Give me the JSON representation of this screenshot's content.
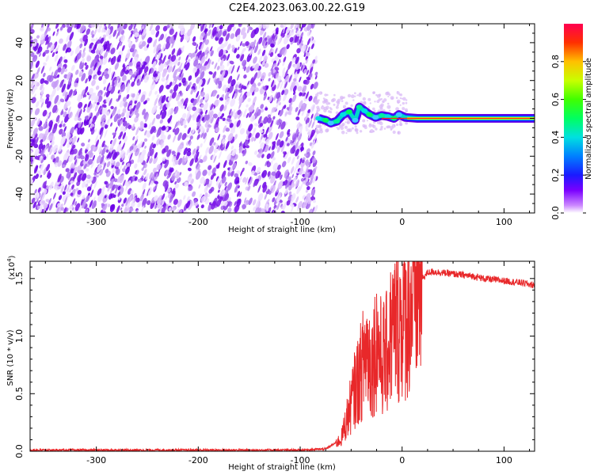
{
  "figure_title": "C2E4.2023.063.00.22.G19",
  "chart_data": [
    {
      "type": "heatmap",
      "xlabel": "Height of straight line (km)",
      "ylabel": "Frequency (Hz)",
      "xlim": [
        -365,
        130
      ],
      "ylim": [
        -50,
        50
      ],
      "xticks": [
        -300,
        -200,
        -100,
        0,
        100
      ],
      "yticks": [
        -40,
        -20,
        0,
        20,
        40
      ],
      "noise_region": [
        -365,
        -84
      ],
      "signal_trace": [
        {
          "x": -82,
          "y": 0.0
        },
        {
          "x": -75,
          "y": -1.0
        },
        {
          "x": -70,
          "y": -2.5
        },
        {
          "x": -64,
          "y": -1.5
        },
        {
          "x": -58,
          "y": 2.0
        },
        {
          "x": -52,
          "y": 3.5
        },
        {
          "x": -46,
          "y": -1.0
        },
        {
          "x": -42,
          "y": 6.0
        },
        {
          "x": -37,
          "y": 4.0
        },
        {
          "x": -32,
          "y": 2.0
        },
        {
          "x": -26,
          "y": 0.5
        },
        {
          "x": -20,
          "y": 1.5
        },
        {
          "x": -14,
          "y": 1.0
        },
        {
          "x": -8,
          "y": 0.0
        },
        {
          "x": -3,
          "y": 2.0
        },
        {
          "x": 3,
          "y": 0.5
        },
        {
          "x": 15,
          "y": 0.0
        },
        {
          "x": 130,
          "y": 0.0
        }
      ],
      "colorbar": {
        "label": "Normalized spectral amplitude",
        "range": [
          0,
          1
        ],
        "ticks": [
          "0.0",
          "0.2",
          "0.4",
          "0.6",
          "0.8"
        ]
      }
    },
    {
      "type": "line",
      "xlabel": "Height of straight line (km)",
      "ylabel": "SNR (10 * v/v)",
      "scale_label": "(x10",
      "scale_exponent": "4",
      "xlim": [
        -365,
        130
      ],
      "ylim": [
        0,
        1.65
      ],
      "xticks": [
        -300,
        -200,
        -100,
        0,
        100
      ],
      "yticks": [
        "0.0",
        "0.5",
        "1.0",
        "1.5"
      ],
      "color": "#e8282a",
      "series": [
        {
          "x": [
            -365,
            -300,
            -200,
            -100,
            -75,
            -60,
            -52,
            -46,
            -40,
            -35,
            -30,
            -25,
            -20,
            -15,
            -10,
            -5,
            0,
            5,
            10,
            15,
            20,
            25,
            30,
            40,
            50,
            60,
            70,
            80,
            90,
            100,
            110,
            120,
            130
          ],
          "values": [
            0.01,
            0.01,
            0.01,
            0.01,
            0.02,
            0.1,
            0.35,
            0.55,
            0.7,
            0.9,
            0.75,
            0.95,
            0.8,
            0.85,
            1.05,
            1.1,
            1.15,
            1.2,
            1.3,
            1.4,
            1.5,
            1.55,
            1.56,
            1.55,
            1.54,
            1.53,
            1.52,
            1.5,
            1.49,
            1.48,
            1.47,
            1.46,
            1.44
          ]
        }
      ]
    }
  ]
}
